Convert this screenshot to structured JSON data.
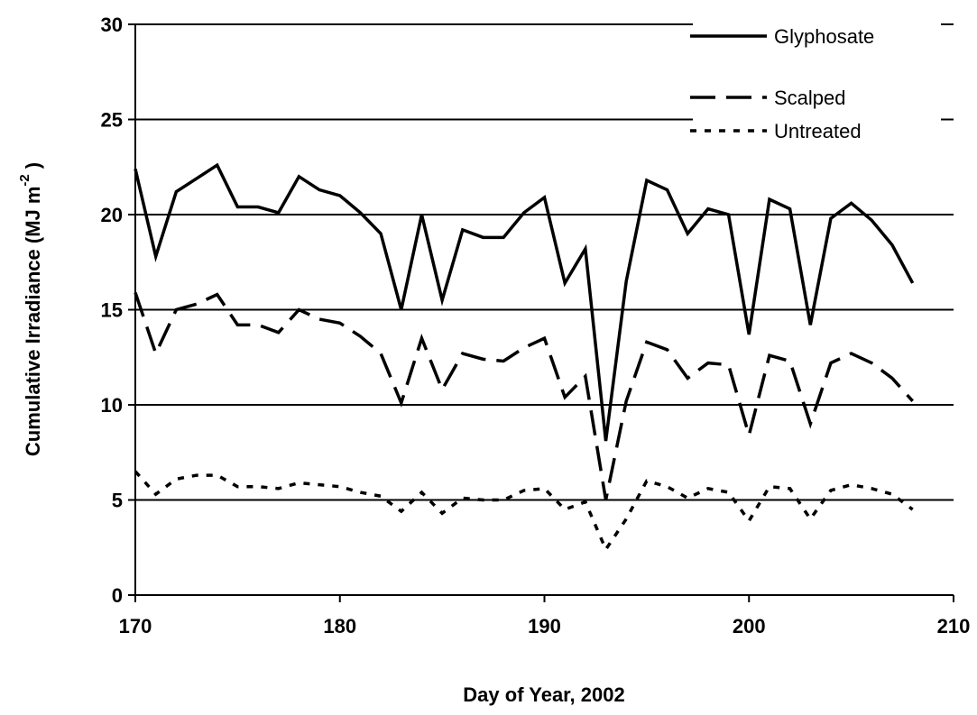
{
  "chart_data": {
    "type": "line",
    "x_label": "Day of Year, 2002",
    "y_label": "Cumulative Irradiance (MJ m",
    "y_label_superscript": "-2",
    "y_label_end": ")",
    "x": [
      170,
      171,
      172,
      173,
      174,
      175,
      176,
      177,
      178,
      179,
      180,
      181,
      182,
      183,
      184,
      185,
      186,
      187,
      188,
      189,
      190,
      191,
      192,
      193,
      194,
      195,
      196,
      197,
      198,
      199,
      200,
      201,
      202,
      203,
      204,
      205,
      206,
      207,
      208
    ],
    "series": [
      {
        "name": "Glyphosate",
        "color": "#000000",
        "dash": "solid",
        "values": [
          22.4,
          17.8,
          21.2,
          21.9,
          22.6,
          20.4,
          20.4,
          20.1,
          22.0,
          21.3,
          21.0,
          20.1,
          19.0,
          15.0,
          20.0,
          15.5,
          19.2,
          18.8,
          18.8,
          20.1,
          20.9,
          16.4,
          18.2,
          8.1,
          16.5,
          21.8,
          21.3,
          19.0,
          20.3,
          20.0,
          13.7,
          20.8,
          20.3,
          14.2,
          19.8,
          20.6,
          19.7,
          18.4,
          16.4
        ]
      },
      {
        "name": "Scalped",
        "color": "#000000",
        "dash": "dashed",
        "values": [
          15.9,
          12.7,
          15.0,
          15.3,
          15.8,
          14.2,
          14.2,
          13.8,
          15.0,
          14.5,
          14.3,
          13.6,
          12.7,
          10.1,
          13.5,
          10.8,
          12.7,
          12.4,
          12.3,
          13.0,
          13.5,
          10.4,
          11.5,
          5.0,
          10.2,
          13.3,
          12.9,
          11.4,
          12.2,
          12.1,
          8.4,
          12.6,
          12.3,
          9.0,
          12.2,
          12.7,
          12.2,
          11.4,
          10.2
        ]
      },
      {
        "name": "Untreated",
        "color": "#000000",
        "dash": "dotted",
        "values": [
          6.5,
          5.3,
          6.1,
          6.3,
          6.3,
          5.7,
          5.7,
          5.6,
          5.9,
          5.8,
          5.7,
          5.4,
          5.2,
          4.4,
          5.4,
          4.3,
          5.1,
          5.0,
          5.0,
          5.5,
          5.6,
          4.5,
          4.9,
          2.4,
          4.0,
          6.0,
          5.7,
          5.1,
          5.6,
          5.4,
          3.9,
          5.7,
          5.6,
          4.0,
          5.5,
          5.8,
          5.6,
          5.3,
          4.5
        ]
      }
    ],
    "xlim": [
      170,
      210
    ],
    "xticks": [
      170,
      180,
      190,
      200,
      210
    ],
    "ylim": [
      0,
      30
    ],
    "yticks": [
      0,
      5,
      10,
      15,
      20,
      25,
      30
    ],
    "grid": true,
    "legend": "top-right"
  }
}
